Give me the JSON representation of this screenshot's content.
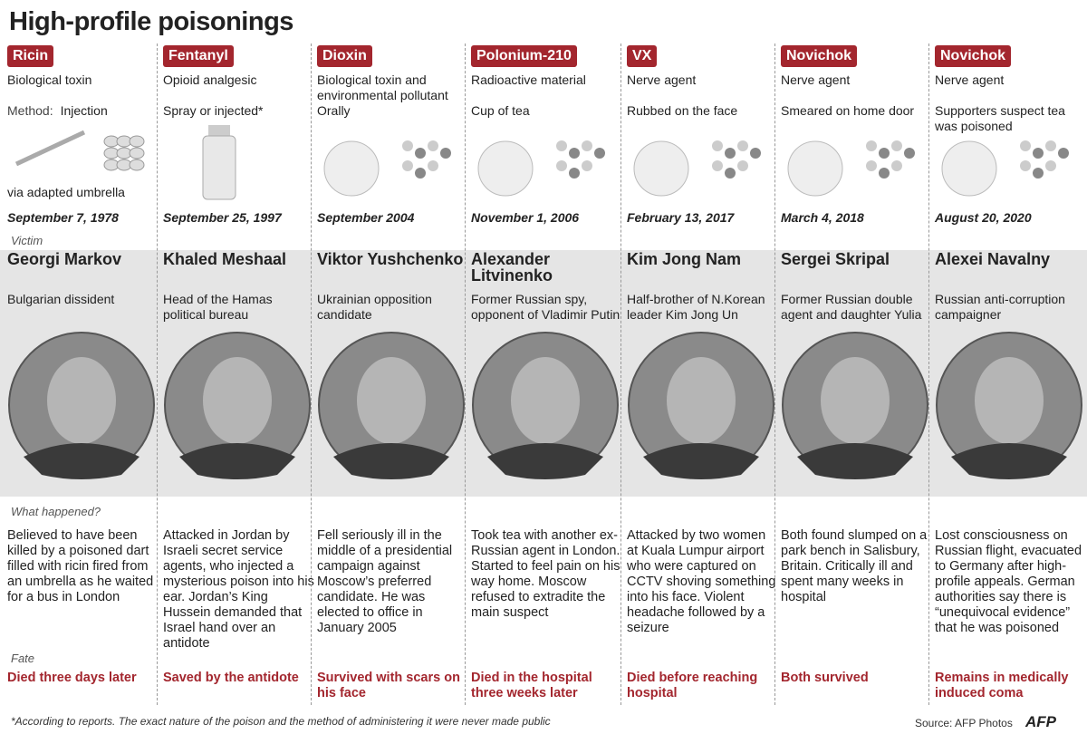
{
  "title": "High-profile poisonings",
  "labels": {
    "victim": "Victim",
    "what_happened": "What happened?",
    "fate": "Fate"
  },
  "columns": [
    {
      "poison": "Ricin",
      "poison_type": "Biological toxin",
      "method_label": "Method:",
      "method": "Injection",
      "method_detail": "via adapted umbrella",
      "date": "September 7, 1978",
      "victim": "Georgi Markov",
      "victim_description": "Bulgarian dissident",
      "what_happened": "Believed to have been killed by a poisoned dart filled with ricin fired from an umbrella as he waited for a bus in London",
      "fate": "Died three days later"
    },
    {
      "poison": "Fentanyl",
      "poison_type": "Opioid analgesic",
      "method": "Spray or injected*",
      "date": "September 25, 1997",
      "victim": "Khaled Meshaal",
      "victim_description": "Head of the Hamas political bureau",
      "what_happened": "Attacked in Jordan by Israeli secret service agents, who injected a mysterious poison into his ear. Jordan’s King Hussein demanded that Israel hand over an antidote",
      "fate": "Saved by the antidote"
    },
    {
      "poison": "Dioxin",
      "poison_type": "Biological toxin and environmental pollutant",
      "method": "Orally",
      "date": "September 2004",
      "victim": "Viktor Yushchenko",
      "victim_description": "Ukrainian opposition candidate",
      "what_happened": "Fell seriously ill in the middle of a presidential campaign against Moscow’s preferred candidate. He was elected to office in January 2005",
      "fate": "Survived with scars on his face"
    },
    {
      "poison": "Polonium-210",
      "poison_type": "Radioactive material",
      "method": "Cup of tea",
      "date": "November 1, 2006",
      "victim": "Alexander Litvinenko",
      "victim_description": "Former Russian spy, opponent of Vladimir Putin",
      "what_happened": "Took tea with another ex-Russian agent in London. Started to feel pain on his way home. Moscow refused to extradite the main suspect",
      "fate": "Died in the hospital three weeks later"
    },
    {
      "poison": "VX",
      "poison_type": "Nerve agent",
      "method": "Rubbed on the face",
      "date": "February 13, 2017",
      "victim": "Kim Jong Nam",
      "victim_description": "Half-brother of N.Korean leader Kim Jong Un",
      "what_happened": "Attacked by two women at Kuala Lumpur airport who were captured on CCTV shoving something into his face. Violent headache followed by a seizure",
      "fate": "Died before reaching hospital"
    },
    {
      "poison": "Novichok",
      "poison_type": "Nerve agent",
      "method": "Smeared on home door",
      "date": "March 4, 2018",
      "victim": "Sergei Skripal",
      "victim_description": "Former Russian double agent and daughter Yulia",
      "what_happened": "Both found slumped on a park bench in Salisbury, Britain. Critically ill and spent many weeks in hospital",
      "fate": "Both survived"
    },
    {
      "poison": "Novichok",
      "poison_type": "Nerve agent",
      "method": "Supporters suspect tea was poisoned",
      "date": "August 20, 2020",
      "victim": "Alexei Navalny",
      "victim_description": "Russian anti-corruption campaigner",
      "what_happened": "Lost consciousness on Russian flight, evacuated to Germany after high-profile appeals. German authorities say there is “unequivocal evidence” that he was poisoned",
      "fate": "Remains in medically induced coma"
    }
  ],
  "footnote": "*According to reports. The exact nature of the poison and the method of administering it were never made public",
  "source": "Source: AFP Photos",
  "logo": "AFP"
}
